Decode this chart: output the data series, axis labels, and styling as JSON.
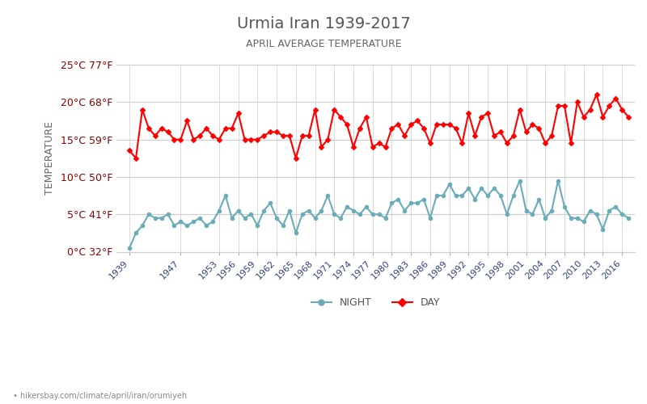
{
  "title": "Urmia Iran 1939-2017",
  "subtitle": "APRIL AVERAGE TEMPERATURE",
  "ylabel": "TEMPERATURE",
  "watermark": "hikersbay.com/climate/april/iran/orumiyeh",
  "ylim": [
    0,
    25
  ],
  "yticks": [
    0,
    5,
    10,
    15,
    20,
    25
  ],
  "ytick_labels": [
    "0°C 32°F",
    "5°C 41°F",
    "10°C 50°F",
    "15°C 59°F",
    "20°C 68°F",
    "25°C 77°F"
  ],
  "xtick_labels": [
    "1939",
    "1947",
    "1953",
    "1956",
    "1959",
    "1962",
    "1965",
    "1968",
    "1971",
    "1974",
    "1977",
    "1980",
    "1983",
    "1986",
    "1989",
    "1992",
    "1995",
    "1998",
    "2001",
    "2004",
    "2007",
    "2010",
    "2013",
    "2016"
  ],
  "years": [
    1939,
    1940,
    1941,
    1942,
    1943,
    1944,
    1945,
    1946,
    1947,
    1948,
    1949,
    1950,
    1951,
    1952,
    1953,
    1954,
    1955,
    1956,
    1957,
    1958,
    1959,
    1960,
    1961,
    1962,
    1963,
    1964,
    1965,
    1966,
    1967,
    1968,
    1969,
    1970,
    1971,
    1972,
    1973,
    1974,
    1975,
    1976,
    1977,
    1978,
    1979,
    1980,
    1981,
    1982,
    1983,
    1984,
    1985,
    1986,
    1987,
    1988,
    1989,
    1990,
    1991,
    1992,
    1993,
    1994,
    1995,
    1996,
    1997,
    1998,
    1999,
    2000,
    2001,
    2002,
    2003,
    2004,
    2005,
    2006,
    2007,
    2008,
    2009,
    2010,
    2011,
    2012,
    2013,
    2014,
    2015,
    2016,
    2017
  ],
  "day_temps": [
    13.5,
    12.5,
    19.0,
    16.5,
    15.5,
    16.5,
    16.0,
    15.0,
    15.0,
    17.5,
    15.0,
    15.5,
    16.5,
    15.5,
    15.0,
    16.5,
    16.5,
    18.5,
    15.0,
    15.0,
    15.0,
    15.5,
    16.0,
    16.0,
    15.5,
    15.5,
    12.5,
    15.5,
    15.5,
    19.0,
    14.0,
    15.0,
    19.0,
    18.0,
    17.0,
    14.0,
    16.5,
    18.0,
    14.0,
    14.5,
    14.0,
    16.5,
    17.0,
    15.5,
    17.0,
    17.5,
    16.5,
    14.5,
    17.0,
    17.0,
    17.0,
    16.5,
    14.5,
    18.5,
    15.5,
    18.0,
    18.5,
    15.5,
    16.0,
    14.5,
    15.5,
    19.0,
    16.0,
    17.0,
    16.5,
    14.5,
    15.5,
    19.5,
    19.5,
    14.5,
    20.0,
    18.0,
    19.0,
    21.0,
    18.0,
    19.5,
    20.5,
    19.0,
    18.0
  ],
  "night_temps": [
    0.5,
    2.5,
    3.5,
    5.0,
    4.5,
    4.5,
    5.0,
    3.5,
    4.0,
    3.5,
    4.0,
    4.5,
    3.5,
    4.0,
    5.5,
    7.5,
    4.5,
    5.5,
    4.5,
    5.0,
    3.5,
    5.5,
    6.5,
    4.5,
    3.5,
    5.5,
    2.5,
    5.0,
    5.5,
    4.5,
    5.5,
    7.5,
    5.0,
    4.5,
    6.0,
    5.5,
    5.0,
    6.0,
    5.0,
    5.0,
    4.5,
    6.5,
    7.0,
    5.5,
    6.5,
    6.5,
    7.0,
    4.5,
    7.5,
    7.5,
    9.0,
    7.5,
    7.5,
    8.5,
    7.0,
    8.5,
    7.5,
    8.5,
    7.5,
    5.0,
    7.5,
    9.5,
    5.5,
    5.0,
    7.0,
    4.5,
    5.5,
    9.5,
    6.0,
    4.5,
    4.5,
    4.0,
    5.5,
    5.0,
    3.0,
    5.5,
    6.0,
    5.0,
    4.5
  ],
  "day_color": "#ff0000",
  "night_color": "#6aacb8",
  "marker_size": 3,
  "line_width": 1.5,
  "background_color": "#ffffff",
  "grid_color": "#cccccc",
  "title_color": "#555555",
  "subtitle_color": "#666666",
  "ylabel_color": "#666666",
  "tick_color": "#8B0000",
  "xtick_color": "#334477",
  "watermark_color": "#888888",
  "legend_night_label": "NIGHT",
  "legend_day_label": "DAY"
}
